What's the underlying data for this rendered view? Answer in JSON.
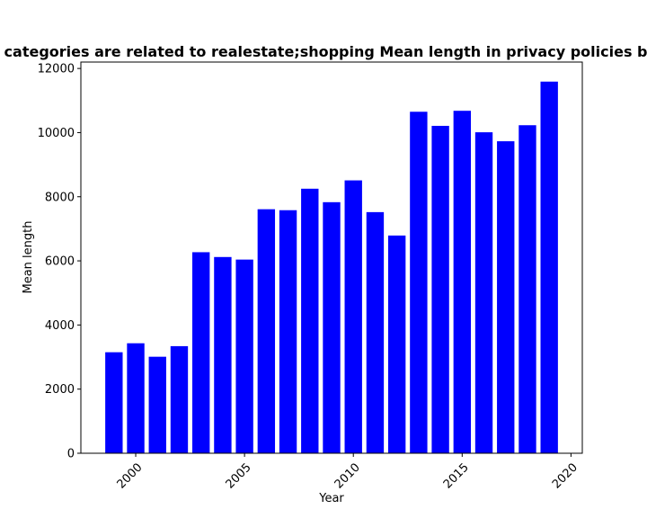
{
  "chart_data": {
    "type": "bar",
    "title": "Which categories are related to realestate;shopping Mean length in privacy policies by year",
    "xlabel": "Year",
    "ylabel": "Mean length",
    "x": [
      1999,
      2000,
      2001,
      2002,
      2003,
      2004,
      2005,
      2006,
      2007,
      2008,
      2009,
      2010,
      2011,
      2012,
      2013,
      2014,
      2015,
      2016,
      2017,
      2018,
      2019
    ],
    "values": [
      3150,
      3430,
      3010,
      3340,
      6270,
      6120,
      6040,
      7610,
      7580,
      8250,
      7830,
      8510,
      7520,
      6790,
      10650,
      10210,
      10680,
      10010,
      9730,
      10230,
      11590
    ],
    "xlim": [
      1997.48,
      2020.52
    ],
    "ylim": [
      0,
      12200
    ],
    "xticks": [
      2000,
      2005,
      2010,
      2015,
      2020
    ],
    "yticks": [
      0,
      2000,
      4000,
      6000,
      8000,
      10000,
      12000
    ],
    "bar_color": "#0000ff",
    "grid": false,
    "legend": "none"
  }
}
